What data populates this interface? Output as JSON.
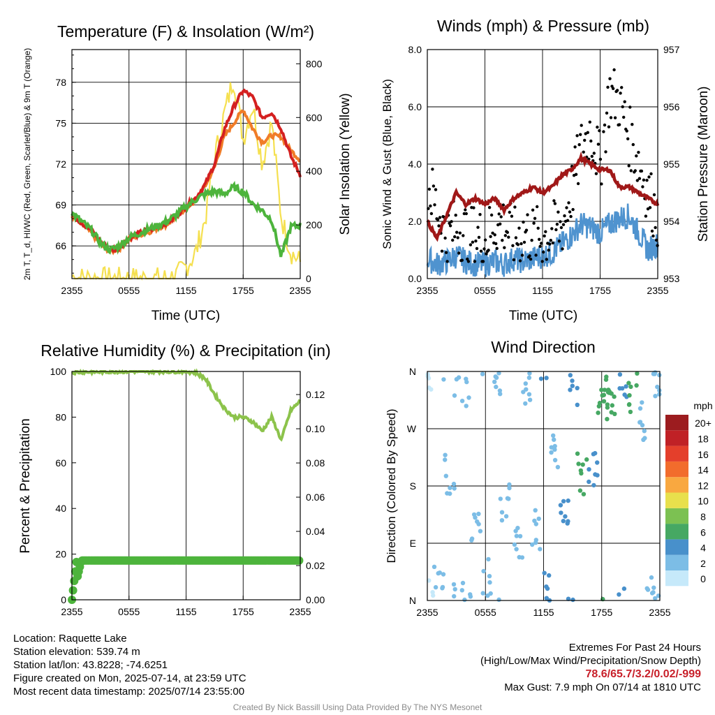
{
  "time_ticks": [
    "2355",
    "0555",
    "1155",
    "1755",
    "2355"
  ],
  "colors": {
    "t2m": "#d42020",
    "dewpoint": "#4db43c",
    "heat_index": "#f07c28",
    "t9m": "#f07c28",
    "solar": "#f5e050",
    "wind_speed": "#4f93cf",
    "wind_gust": "#000000",
    "pressure": "#a01818",
    "rh": "#8cc34b",
    "precip": "#4db43c",
    "extremes": "#c8202a"
  },
  "chart_data": [
    {
      "type": "line",
      "title": "Temperature (F) & Insolation (W/m²)",
      "xlabel": "Time (UTC)",
      "ylabel_left": "2m T, T_d, HI/WC (Red, Green, Scarlet/Blue) & 9m T (Orange)",
      "ylabel_right": "Solar Insolation (Yellow)",
      "x_ticks": [
        "2355",
        "0555",
        "1155",
        "1755",
        "2355"
      ],
      "y_ticks_left": [
        66,
        69,
        72,
        75,
        78
      ],
      "y_ticks_right": [
        0,
        200,
        400,
        600,
        800
      ],
      "ylim_left": [
        63.6,
        80.4
      ],
      "ylim_right": [
        0,
        853
      ],
      "x_hours": [
        0,
        1,
        2,
        3,
        4,
        5,
        6,
        7,
        8,
        9,
        10,
        11,
        12,
        13,
        14,
        15,
        16,
        17,
        18,
        19,
        20,
        21,
        22,
        23,
        24
      ],
      "series": [
        {
          "name": "2m T",
          "axis": "left",
          "values": [
            68.3,
            67.7,
            67.2,
            66.3,
            65.7,
            65.9,
            66.6,
            66.9,
            67.2,
            67.4,
            67.7,
            68.2,
            68.9,
            69.5,
            70.5,
            72.0,
            74.5,
            76.2,
            77.4,
            76.9,
            75.4,
            75.8,
            74.6,
            72.6,
            71.2
          ]
        },
        {
          "name": "Dew Point",
          "axis": "left",
          "values": [
            68.4,
            67.8,
            67.2,
            66.2,
            65.7,
            66.0,
            66.6,
            66.9,
            67.2,
            67.5,
            67.8,
            68.3,
            68.9,
            69.4,
            69.8,
            70.0,
            69.8,
            70.3,
            70.0,
            69.1,
            68.6,
            67.9,
            65.2,
            67.4,
            67.5
          ]
        },
        {
          "name": "9m T",
          "axis": "left",
          "values": [
            68.2,
            67.6,
            67.0,
            66.1,
            65.6,
            65.8,
            66.5,
            66.8,
            67.0,
            67.3,
            67.6,
            68.1,
            68.8,
            69.3,
            70.4,
            71.8,
            74.0,
            75.0,
            76.0,
            74.6,
            73.6,
            74.1,
            74.0,
            73.0,
            72.3
          ]
        },
        {
          "name": "Solar Insolation",
          "axis": "right",
          "values": [
            8,
            2,
            1,
            0,
            0,
            0,
            0,
            0,
            0,
            0,
            0,
            10,
            45,
            95,
            220,
            450,
            610,
            750,
            520,
            650,
            430,
            580,
            230,
            100,
            60
          ]
        }
      ]
    },
    {
      "type": "line",
      "title": "Winds (mph) & Pressure (mb)",
      "xlabel": "Time (UTC)",
      "ylabel_left": "Sonic Wind & Gust (Blue, Black)",
      "ylabel_right": "Station Pressure (Maroon)",
      "x_ticks": [
        "2355",
        "0555",
        "1155",
        "1755",
        "2355"
      ],
      "y_ticks_left": [
        "0.0",
        "2.0",
        "4.0",
        "6.0",
        "8.0"
      ],
      "y_ticks_right": [
        953,
        954,
        955,
        956,
        957
      ],
      "ylim_left": [
        0,
        8
      ],
      "ylim_right": [
        953,
        957
      ],
      "x_hours": [
        0,
        1,
        2,
        3,
        4,
        5,
        6,
        7,
        8,
        9,
        10,
        11,
        12,
        13,
        14,
        15,
        16,
        17,
        18,
        19,
        20,
        21,
        22,
        23,
        24
      ],
      "series": [
        {
          "name": "Sonic Wind",
          "axis": "left",
          "values": [
            0.7,
            0.5,
            0.6,
            0.8,
            0.6,
            0.5,
            0.5,
            0.6,
            0.5,
            0.7,
            0.6,
            0.7,
            0.8,
            0.9,
            1.2,
            1.5,
            1.9,
            1.8,
            1.6,
            1.9,
            2.1,
            2.2,
            1.6,
            1.0,
            1.2
          ]
        },
        {
          "name": "Gust",
          "axis": "left",
          "type": "scatter",
          "values": [
            3.3,
            2.5,
            1.4,
            1.8,
            1.6,
            1.5,
            1.3,
            1.9,
            1.9,
            1.4,
            1.6,
            1.5,
            1.4,
            1.6,
            1.8,
            3.0,
            4.5,
            5.2,
            4.0,
            6.5,
            6.2,
            5.0,
            4.1,
            3.0,
            2.1
          ]
        },
        {
          "name": "Station Pressure",
          "axis": "right",
          "values": [
            954.0,
            953.7,
            954.1,
            954.5,
            954.3,
            954.4,
            954.3,
            954.4,
            954.2,
            954.4,
            954.5,
            954.6,
            954.5,
            954.6,
            954.8,
            954.9,
            955.1,
            955.0,
            954.9,
            954.9,
            954.6,
            954.6,
            954.5,
            954.4,
            954.3
          ]
        }
      ]
    },
    {
      "type": "line",
      "title": "Relative Humidity (%) & Precipitation (in)",
      "xlabel": "",
      "ylabel_left": "Percent & Precipitation",
      "ylabel_right": "",
      "x_ticks": [
        "2355",
        "0555",
        "1155",
        "1755",
        "2355"
      ],
      "y_ticks_left": [
        0,
        20,
        40,
        60,
        80,
        100
      ],
      "y_ticks_right": [
        "0.00",
        "0.02",
        "0.04",
        "0.06",
        "0.08",
        "0.10",
        "0.12"
      ],
      "ylim_left": [
        0,
        100
      ],
      "ylim_right": [
        0,
        0.1335
      ],
      "x_hours": [
        0,
        1,
        2,
        3,
        4,
        5,
        6,
        7,
        8,
        9,
        10,
        11,
        12,
        13,
        14,
        15,
        16,
        17,
        18,
        19,
        20,
        21,
        22,
        23,
        24
      ],
      "series": [
        {
          "name": "Relative Humidity",
          "axis": "left",
          "values": [
            99.5,
            99.8,
            99.8,
            99.8,
            100,
            100,
            100,
            100,
            100,
            100,
            100,
            100,
            100,
            99.5,
            97,
            90,
            84,
            80,
            80,
            78,
            74,
            80,
            70,
            83,
            87
          ]
        },
        {
          "name": "Precipitation",
          "axis": "right",
          "values": [
            0.0,
            0.023,
            0.023,
            0.023,
            0.023,
            0.023,
            0.023,
            0.023,
            0.023,
            0.023,
            0.023,
            0.023,
            0.023,
            0.023,
            0.023,
            0.023,
            0.023,
            0.023,
            0.023,
            0.023,
            0.023,
            0.023,
            0.023,
            0.023,
            0.023
          ]
        }
      ]
    },
    {
      "type": "scatter",
      "title": "Wind Direction",
      "xlabel": "",
      "ylabel": "Direction (Colored By Speed)",
      "x_ticks": [
        "2355",
        "0555",
        "1155",
        "1755",
        "2355"
      ],
      "y_ticks": [
        "N",
        "E",
        "S",
        "W",
        "N"
      ],
      "ylim": [
        0,
        360
      ],
      "colorbar_title": "mph",
      "colorbar_labels": [
        "0",
        "2",
        "4",
        "6",
        "8",
        "10",
        "12",
        "14",
        "16",
        "18",
        "20+"
      ],
      "colorbar_colors": [
        "#c6e9fa",
        "#7cbde6",
        "#4890cb",
        "#46a863",
        "#7cc152",
        "#e8e04c",
        "#f9a840",
        "#f26c2c",
        "#e43f2b",
        "#c02126",
        "#9c1c1f"
      ],
      "points": [
        {
          "x": 0.3,
          "dir": 0,
          "speed": 0
        },
        {
          "x": 1.2,
          "dir": 20,
          "speed": 1
        },
        {
          "x": 2.3,
          "dir": 200,
          "speed": 1
        },
        {
          "x": 3.2,
          "dir": 355,
          "speed": 1
        },
        {
          "x": 4.0,
          "dir": 340,
          "speed": 1
        },
        {
          "x": 5.0,
          "dir": 120,
          "speed": 1
        },
        {
          "x": 6.2,
          "dir": 30,
          "speed": 1
        },
        {
          "x": 7.1,
          "dir": 350,
          "speed": 1
        },
        {
          "x": 8.0,
          "dir": 160,
          "speed": 1
        },
        {
          "x": 9.3,
          "dir": 80,
          "speed": 1
        },
        {
          "x": 10.1,
          "dir": 340,
          "speed": 1
        },
        {
          "x": 11.3,
          "dir": 110,
          "speed": 1
        },
        {
          "x": 12.2,
          "dir": 15,
          "speed": 2
        },
        {
          "x": 13.0,
          "dir": 240,
          "speed": 1
        },
        {
          "x": 14.1,
          "dir": 150,
          "speed": 2
        },
        {
          "x": 15.0,
          "dir": 330,
          "speed": 2
        },
        {
          "x": 16.0,
          "dir": 200,
          "speed": 3
        },
        {
          "x": 17.1,
          "dir": 215,
          "speed": 2
        },
        {
          "x": 18.0,
          "dir": 320,
          "speed": 3
        },
        {
          "x": 18.5,
          "dir": 330,
          "speed": 3
        },
        {
          "x": 19.0,
          "dir": 300,
          "speed": 3
        },
        {
          "x": 20.1,
          "dir": 345,
          "speed": 2
        },
        {
          "x": 21.2,
          "dir": 330,
          "speed": 3
        },
        {
          "x": 22.0,
          "dir": 280,
          "speed": 1
        },
        {
          "x": 23.1,
          "dir": 10,
          "speed": 1
        },
        {
          "x": 23.8,
          "dir": 355,
          "speed": 1
        }
      ]
    }
  ],
  "info_left": [
    "Location: Raquette Lake",
    "Station elevation: 539.74 m",
    "Station lat/lon: 43.8228; -74.6251",
    "Figure created on Mon, 2025-07-14, at 23:59 UTC",
    "Most recent data timestamp: 2025/07/14 23:55:00"
  ],
  "extremes": {
    "heading": "Extremes For Past 24 Hours",
    "subheading": "(High/Low/Max Wind/Precipitation/Snow Depth)",
    "values": "78.6/65.7/3.2/0.02/-999",
    "max_gust": "Max Gust: 7.9 mph On 07/14 at 1810 UTC"
  },
  "credit": "Created By Nick Bassill Using Data Provided By The NYS Mesonet"
}
